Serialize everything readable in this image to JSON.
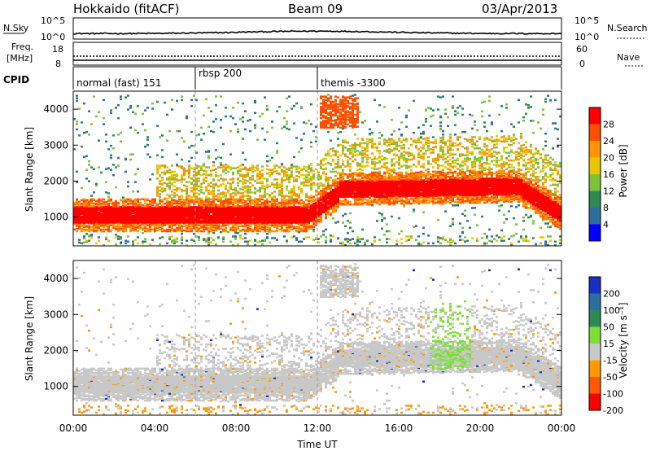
{
  "header": {
    "station": "Hokkaido (fitACF)",
    "beam": "Beam 09",
    "date": "03/Apr/2013"
  },
  "noise_panel": {
    "left_label": "N.Sky",
    "right_label": "N.Search",
    "left_ticks": [
      "10^5",
      "10^0"
    ],
    "right_ticks": [
      "10^5",
      "10^0"
    ]
  },
  "freq_panel": {
    "left_label_line1": "Freq.",
    "left_label_line2": "[MHz]",
    "right_label": "Nave",
    "left_ticks": [
      "18",
      "8"
    ],
    "right_ticks": [
      "60",
      "0"
    ]
  },
  "cpid_panel": {
    "label": "CPID",
    "segments": [
      {
        "label": "normal (fast) 151",
        "start_hour": 0
      },
      {
        "label": "rbsp 200",
        "start_hour": 6
      },
      {
        "label": "themis -3300",
        "start_hour": 12
      }
    ]
  },
  "x_axis": {
    "label": "Time UT",
    "ticks": [
      "00:00",
      "04:00",
      "08:00",
      "12:00",
      "16:00",
      "20:00",
      "00:00"
    ],
    "range_hours": [
      0,
      24
    ]
  },
  "chart_data": [
    {
      "type": "heatmap",
      "panel": "power",
      "ylabel": "Slant Range [km]",
      "ylim": [
        200,
        4500
      ],
      "yticks": [
        "1000",
        "2000",
        "3000",
        "4000"
      ],
      "colorbar_label": "Power [dB]",
      "colorbar_ticks": [
        "28",
        "24",
        "20",
        "16",
        "12",
        "8",
        "4"
      ],
      "colorbar_colors": [
        "#ff0000",
        "#ff5000",
        "#ff9400",
        "#e8c800",
        "#7ec23a",
        "#2e8a55",
        "#2f6fa0",
        "#0000ff"
      ],
      "features": [
        {
          "desc_key": "sub-band",
          "x_hours": [
            0,
            11.5
          ],
          "range_km": [
            700,
            1400
          ],
          "level_db": 27
        },
        {
          "desc_key": "upper-band",
          "x_hours": [
            11.5,
            24
          ],
          "range_km": [
            1500,
            2200
          ],
          "level_db": 24
        }
      ]
    },
    {
      "type": "heatmap",
      "panel": "velocity",
      "ylabel": "Slant Range [km]",
      "ylim": [
        200,
        4500
      ],
      "yticks": [
        "1000",
        "2000",
        "3000",
        "4000"
      ],
      "colorbar_label": "Velocity [m s⁻¹]",
      "colorbar_ticks": [
        "200",
        "100",
        "50",
        "15",
        "-15",
        "-50",
        "-100",
        "-200"
      ],
      "colorbar_colors": [
        "#1a2fc0",
        "#2f6fa0",
        "#2e8a55",
        "#7ede38",
        "#c8c8c8",
        "#ff9a00",
        "#ff5a00",
        "#ff0000"
      ]
    }
  ]
}
